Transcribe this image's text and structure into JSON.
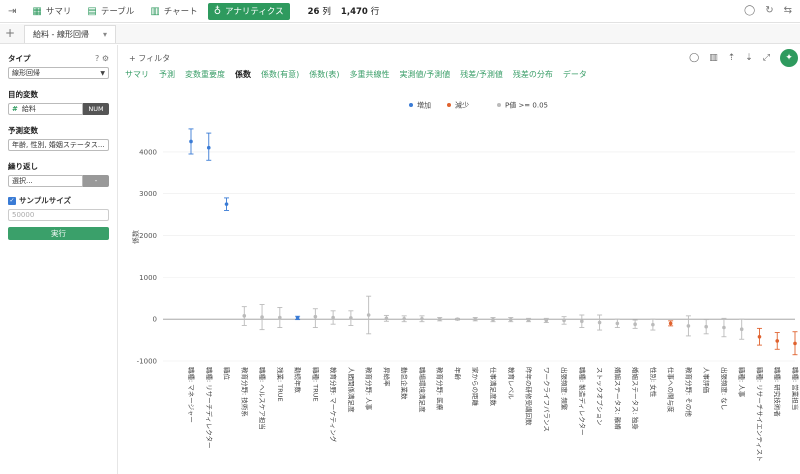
{
  "topbar": {
    "tabs": [
      {
        "label": "サマリ",
        "icon": "summary-icon"
      },
      {
        "label": "テーブル",
        "icon": "table-icon"
      },
      {
        "label": "チャート",
        "icon": "chart-icon"
      },
      {
        "label": "アナリティクス",
        "icon": "bulb-icon"
      }
    ],
    "columns_value": "26",
    "columns_unit": "列",
    "rows_value": "1,470",
    "rows_unit": "行"
  },
  "filetab": {
    "label": "給料 - 線形回帰"
  },
  "sidebar": {
    "type_label": "タイプ",
    "type_value": "線形回帰",
    "target_label": "目的変数",
    "target_value": "給料",
    "target_badge": "NUM",
    "predictors_label": "予測変数",
    "predictors_value": "年齢, 性別, 婚姻ステータス...",
    "repeat_label": "繰り返し",
    "repeat_value": "選択...",
    "repeat_btn": "-",
    "sample_label": "サンプルサイズ",
    "sample_placeholder": "50000",
    "run_label": "実行"
  },
  "main": {
    "filter_label": "+ フィルタ",
    "view_tabs": [
      "サマリ",
      "予測",
      "変数重要度",
      "係数",
      "係数(有意)",
      "係数(表)",
      "多重共線性",
      "実測値/予測値",
      "残差/予測値",
      "残差の分布",
      "データ"
    ],
    "active_view": "係数"
  },
  "chart_data": {
    "type": "scatter",
    "ylabel": "係数",
    "ylim": [
      -1000,
      4500
    ],
    "yticks": [
      -1000,
      0,
      1000,
      2000,
      3000,
      4000
    ],
    "legend": [
      {
        "name": "増加",
        "color": "#3a7bd5"
      },
      {
        "name": "減少",
        "color": "#e0622e"
      },
      {
        "name": "P値 >= 0.05",
        "color": "#bbbbbb"
      }
    ],
    "legend_position": "top-center",
    "categories": [
      "職種: マネージャー",
      "職種: リサーチディレクター",
      "職位",
      "教育分野: 技術系",
      "職種: ヘルスケア担当",
      "残業: TRUE",
      "勤続年数",
      "職種: TRUE",
      "教育分野: マーケティング",
      "人間関係満足度",
      "教育分野: 人事",
      "昇給率",
      "勤怠企業数",
      "職場環境満足度",
      "教育分野: 医療",
      "年齢",
      "家からの距離",
      "仕事満足度数",
      "教育レベル",
      "昨年の研修受講回数",
      "ワークライフバランス",
      "出張頻度: 頻繁",
      "職種: 製造ディレクター",
      "ストックオプション",
      "婚姻ステータス: 離婚",
      "婚姻ステータス: 独身",
      "性別: 女性",
      "仕事への関与度",
      "教育分野: その他",
      "人事評価",
      "出張頻度: なし",
      "職種: 人事",
      "職種: リサーチサイエンティスト",
      "職種: 研究技術者",
      "職種: 営業担当"
    ],
    "values": [
      4250,
      4100,
      2750,
      80,
      50,
      40,
      30,
      60,
      40,
      30,
      100,
      20,
      10,
      10,
      0,
      0,
      0,
      -10,
      -10,
      -20,
      -30,
      -30,
      -50,
      -80,
      -100,
      -120,
      -130,
      -100,
      -160,
      -180,
      -200,
      -240,
      -420,
      -520,
      -580
    ],
    "ci_low": [
      3950,
      3800,
      2600,
      -150,
      -250,
      -200,
      -10,
      -200,
      -120,
      -150,
      -350,
      -50,
      -60,
      -60,
      -40,
      -20,
      -40,
      -60,
      -60,
      -60,
      -80,
      -120,
      -200,
      -260,
      -200,
      -220,
      -260,
      -160,
      -400,
      -350,
      -420,
      -480,
      -620,
      -720,
      -850
    ],
    "ci_high": [
      4550,
      4450,
      2900,
      300,
      350,
      280,
      70,
      250,
      200,
      200,
      550,
      90,
      80,
      80,
      40,
      20,
      40,
      40,
      40,
      20,
      20,
      60,
      100,
      100,
      0,
      -20,
      0,
      -40,
      80,
      -10,
      20,
      0,
      -220,
      -320,
      -300
    ],
    "status": [
      "inc",
      "inc",
      "inc",
      "ns",
      "ns",
      "ns",
      "inc",
      "ns",
      "ns",
      "ns",
      "ns",
      "ns",
      "ns",
      "ns",
      "ns",
      "ns",
      "ns",
      "ns",
      "ns",
      "ns",
      "ns",
      "ns",
      "ns",
      "ns",
      "ns",
      "ns",
      "ns",
      "dec",
      "ns",
      "ns",
      "ns",
      "ns",
      "dec",
      "dec",
      "dec"
    ]
  }
}
